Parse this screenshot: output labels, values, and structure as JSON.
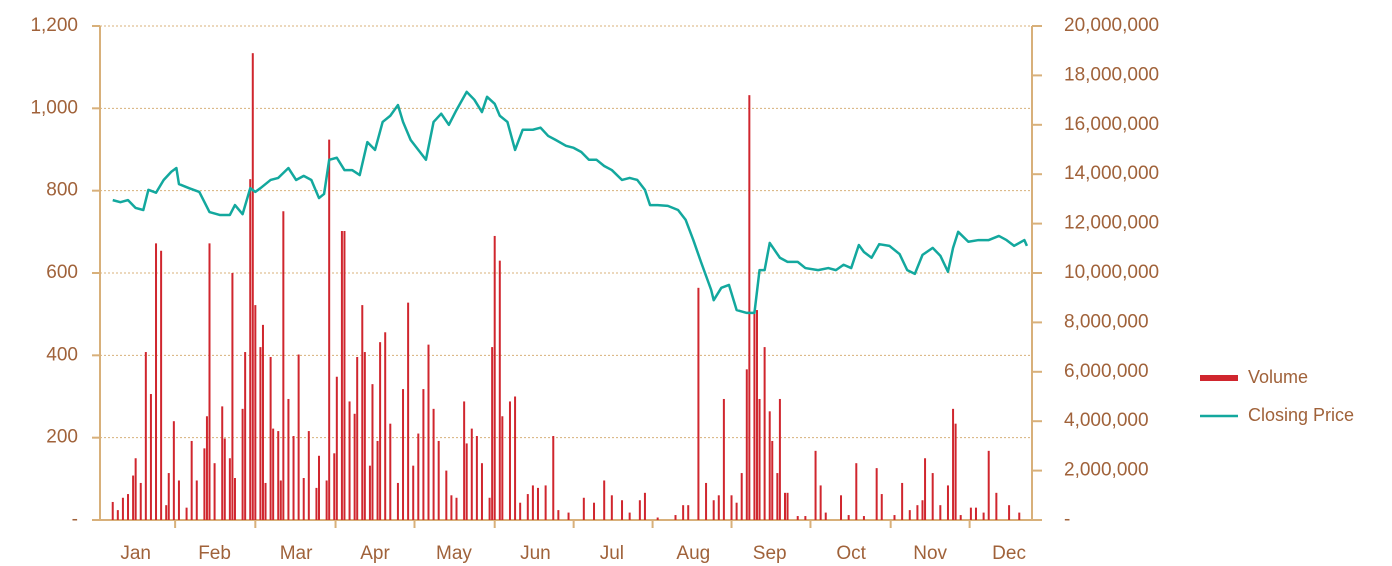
{
  "chart_data": {
    "type": "combo",
    "xlim": [
      0,
      366
    ],
    "xticks": [
      {
        "value": 14,
        "label": "Jan"
      },
      {
        "value": 45,
        "label": "Feb"
      },
      {
        "value": 77,
        "label": "Mar"
      },
      {
        "value": 108,
        "label": "Apr"
      },
      {
        "value": 139,
        "label": "May"
      },
      {
        "value": 171,
        "label": "Jun"
      },
      {
        "value": 201,
        "label": "Jul"
      },
      {
        "value": 233,
        "label": "Aug"
      },
      {
        "value": 263,
        "label": "Sep"
      },
      {
        "value": 295,
        "label": "Oct"
      },
      {
        "value": 326,
        "label": "Nov"
      },
      {
        "value": 357,
        "label": "Dec"
      }
    ],
    "ylim": [
      0,
      1200
    ],
    "yticks": [
      {
        "value": 0,
        "label": "-"
      },
      200,
      400,
      600,
      800,
      {
        "value": 1000,
        "label": "1,000"
      },
      {
        "value": 1200,
        "label": "1,200"
      }
    ],
    "y2lim": [
      0,
      20000000
    ],
    "y2ticks": [
      {
        "value": 0,
        "label": "-"
      },
      {
        "value": 2000000,
        "label": "2,000,000"
      },
      {
        "value": 4000000,
        "label": "4,000,000"
      },
      {
        "value": 6000000,
        "label": "6,000,000"
      },
      {
        "value": 8000000,
        "label": "8,000,000"
      },
      {
        "value": 10000000,
        "label": "10,000,000"
      },
      {
        "value": 12000000,
        "label": "12,000,000"
      },
      {
        "value": 14000000,
        "label": "14,000,000"
      },
      {
        "value": 16000000,
        "label": "16,000,000"
      },
      {
        "value": 18000000,
        "label": "18,000,000"
      },
      {
        "value": 20000000,
        "label": "20,000,000"
      }
    ],
    "grid": true,
    "legend": "right",
    "series": [
      {
        "name": "Volume",
        "type": "bar",
        "axis": "y2",
        "color": "#d0262e",
        "x": [
          5,
          7,
          9,
          11,
          13,
          14,
          16,
          18,
          20,
          22,
          24,
          26,
          27,
          29,
          31,
          34,
          36,
          38,
          41,
          42,
          43,
          45,
          48,
          49,
          51,
          52,
          53,
          56,
          57,
          59,
          60,
          61,
          63,
          64,
          65,
          67,
          68,
          70,
          71,
          72,
          74,
          76,
          78,
          80,
          82,
          85,
          86,
          89,
          90,
          92,
          93,
          95,
          96,
          98,
          100,
          101,
          103,
          104,
          106,
          107,
          109,
          110,
          112,
          114,
          117,
          119,
          121,
          123,
          125,
          127,
          129,
          131,
          133,
          136,
          138,
          140,
          143,
          144,
          146,
          148,
          150,
          153,
          154,
          155,
          157,
          158,
          161,
          163,
          165,
          168,
          170,
          172,
          175,
          178,
          180,
          184,
          190,
          194,
          198,
          201,
          205,
          208,
          212,
          214,
          219,
          226,
          229,
          231,
          235,
          238,
          241,
          243,
          245,
          248,
          250,
          252,
          254,
          255,
          257,
          258,
          259,
          261,
          263,
          264,
          266,
          267,
          269,
          270,
          274,
          277,
          281,
          283,
          285,
          291,
          294,
          297,
          300,
          305,
          307,
          312,
          315,
          318,
          321,
          323,
          324,
          327,
          330,
          333,
          335,
          336,
          338,
          342,
          344,
          347,
          349,
          352,
          357,
          361
        ],
        "values": [
          730000,
          400000,
          900000,
          1050000,
          1800000,
          2500000,
          1500000,
          6800000,
          5100000,
          11200000,
          10900000,
          600000,
          1900000,
          4000000,
          1600000,
          500000,
          3200000,
          1600000,
          2900000,
          4200000,
          11200000,
          2300000,
          4600000,
          3300000,
          2500000,
          10000000,
          1700000,
          4500000,
          6800000,
          13800000,
          18900000,
          8700000,
          7000000,
          7900000,
          1500000,
          6600000,
          3700000,
          3600000,
          1600000,
          12500000,
          4900000,
          3400000,
          6700000,
          1700000,
          3600000,
          1300000,
          2600000,
          1600000,
          15400000,
          2700000,
          5800000,
          11700000,
          11700000,
          4800000,
          4300000,
          6600000,
          8700000,
          6800000,
          2200000,
          5500000,
          3200000,
          7200000,
          7600000,
          3900000,
          1500000,
          5300000,
          8800000,
          2200000,
          3500000,
          5300000,
          7100000,
          4500000,
          3200000,
          2000000,
          1000000,
          900000,
          4800000,
          3100000,
          3700000,
          3400000,
          2300000,
          900000,
          7000000,
          11500000,
          10500000,
          4200000,
          4800000,
          5000000,
          700000,
          1050000,
          1400000,
          1300000,
          1400000,
          3400000,
          400000,
          300000,
          900000,
          700000,
          1600000,
          1000000,
          800000,
          300000,
          800000,
          1100000,
          100000,
          200000,
          600000,
          600000,
          9400000,
          1500000,
          800000,
          1000000,
          4900000,
          1000000,
          700000,
          1900000,
          6100000,
          17200000,
          8500000,
          8500000,
          4900000,
          7000000,
          4400000,
          3200000,
          1900000,
          4900000,
          1100000,
          1100000,
          160000,
          160000,
          2800000,
          1400000,
          300000,
          1000000,
          200000,
          2300000,
          160000,
          2100000,
          1050000,
          200000,
          1500000,
          400000,
          600000,
          800000,
          2500000,
          1900000,
          600000,
          1400000,
          4500000,
          3900000,
          200000,
          500000,
          500000,
          300000,
          2800000,
          1100000,
          600000,
          300000
        ]
      },
      {
        "name": "Closing Price",
        "type": "line",
        "axis": "y",
        "color": "#13a89e",
        "x": [
          5,
          8,
          11,
          14,
          17,
          19,
          22,
          25,
          28,
          30,
          31,
          35,
          39,
          43,
          47,
          51,
          53,
          56,
          59,
          61,
          63,
          67,
          70,
          74,
          77,
          80,
          83,
          86,
          88,
          90,
          93,
          96,
          99,
          102,
          105,
          108,
          111,
          114,
          117,
          119,
          122,
          125,
          128,
          131,
          134,
          137,
          140,
          144,
          147,
          150,
          152,
          155,
          157,
          160,
          163,
          166,
          170,
          173,
          176,
          179,
          183,
          186,
          189,
          192,
          195,
          198,
          201,
          205,
          208,
          211,
          214,
          216,
          219,
          223,
          227,
          230,
          233,
          236,
          240,
          241,
          244,
          247,
          250,
          254,
          257,
          259,
          261,
          263,
          267,
          270,
          274,
          277,
          282,
          286,
          289,
          292,
          295,
          298,
          300,
          303,
          306,
          310,
          314,
          317,
          320,
          323,
          327,
          330,
          333,
          335,
          337,
          341,
          345,
          349,
          353,
          356,
          359,
          363,
          364
        ],
        "values": [
          777,
          772,
          777,
          758,
          753,
          802,
          795,
          826,
          846,
          855,
          816,
          806,
          797,
          748,
          741,
          741,
          765,
          743,
          806,
          797,
          806,
          826,
          831,
          855,
          826,
          836,
          826,
          782,
          792,
          875,
          880,
          850,
          850,
          838,
          918,
          899,
          967,
          982,
          1008,
          967,
          923,
          899,
          875,
          967,
          987,
          960,
          996,
          1040,
          1021,
          991,
          1028,
          1011,
          982,
          967,
          899,
          948,
          948,
          953,
          933,
          923,
          909,
          904,
          894,
          875,
          875,
          860,
          850,
          826,
          831,
          826,
          802,
          765,
          765,
          763,
          753,
          729,
          680,
          627,
          559,
          534,
          564,
          571,
          510,
          503,
          503,
          607,
          607,
          673,
          637,
          627,
          627,
          612,
          607,
          612,
          607,
          620,
          612,
          668,
          651,
          637,
          670,
          666,
          646,
          607,
          598,
          644,
          661,
          642,
          603,
          661,
          700,
          676,
          680,
          680,
          690,
          680,
          666,
          680,
          666
        ]
      }
    ]
  }
}
